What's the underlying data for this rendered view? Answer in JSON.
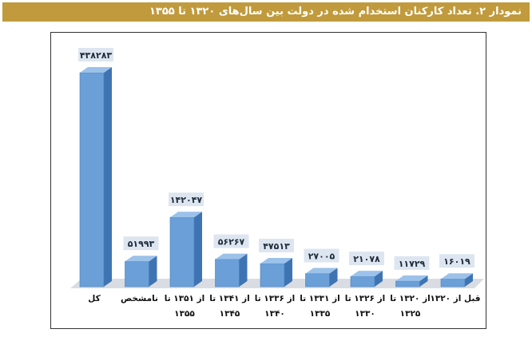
{
  "title": "نمودار ۲. تعداد کارکنان استخدام شده در دولت بین سال‌های ۱۳۲۰ تا ۱۳۵۵",
  "colors": {
    "title_bg": "#c09a3c",
    "bar_front": "#6a9fd8",
    "bar_top": "#9cc2ea",
    "bar_side": "#3f74b3",
    "label_bg": "#dde6f0",
    "floor": "#d9dde3"
  },
  "chart_data": {
    "type": "bar",
    "categories": [
      [
        "کل"
      ],
      [
        "نامشخص"
      ],
      [
        "از ۱۳۵۱ تا",
        "۱۳۵۵"
      ],
      [
        "از ۱۳۴۱ تا",
        "۱۳۴۵"
      ],
      [
        "از ۱۳۳۶ تا",
        "۱۳۴۰"
      ],
      [
        "از ۱۳۳۱ تا",
        "۱۳۳۵"
      ],
      [
        "از ۱۳۲۶ تا",
        "۱۳۳۰"
      ],
      [
        "از ۱۳۲۰ تا",
        "۱۳۲۵"
      ],
      [
        "قبل از ۱۳۲۰"
      ]
    ],
    "values": [
      438283,
      51993,
      142047,
      56267,
      47513,
      27005,
      21078,
      11729,
      16019
    ],
    "value_labels": [
      "۴۳۸۲۸۳",
      "۵۱۹۹۳",
      "۱۴۲۰۴۷",
      "۵۶۲۶۷",
      "۴۷۵۱۳",
      "۲۷۰۰۵",
      "۲۱۰۷۸",
      "۱۱۷۲۹",
      "۱۶۰۱۹"
    ],
    "ylim": [
      0,
      438283
    ],
    "grid": false,
    "legend": "none"
  }
}
